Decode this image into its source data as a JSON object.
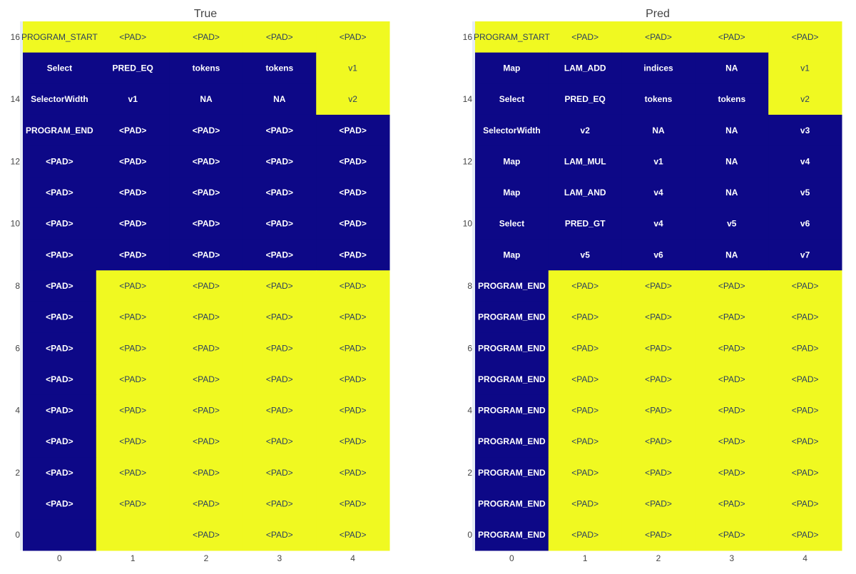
{
  "colors": {
    "low": "#0d0887",
    "high": "#f0f921",
    "text_on_low": "#ffffff",
    "text_on_high": "#2a3f5f",
    "title": "#444444",
    "tick": "#444444"
  },
  "chart_data": [
    {
      "type": "heatmap",
      "title": "True",
      "x_ticks": [
        "0",
        "1",
        "2",
        "3",
        "4"
      ],
      "y_ticks": [
        "16",
        "14",
        "12",
        "10",
        "8",
        "6",
        "4",
        "2",
        "0"
      ],
      "y_range": [
        0,
        16
      ],
      "rows": [
        {
          "y": 16,
          "labels": [
            "PROGRAM_START",
            "<PAD>",
            "<PAD>",
            "<PAD>",
            "<PAD>"
          ],
          "values": [
            1,
            1,
            1,
            1,
            1
          ]
        },
        {
          "y": 15,
          "labels": [
            "Select",
            "PRED_EQ",
            "tokens",
            "tokens",
            "v1"
          ],
          "values": [
            0,
            0,
            0,
            0,
            1
          ]
        },
        {
          "y": 14,
          "labels": [
            "SelectorWidth",
            "v1",
            "NA",
            "NA",
            "v2"
          ],
          "values": [
            0,
            0,
            0,
            0,
            1
          ]
        },
        {
          "y": 13,
          "labels": [
            "PROGRAM_END",
            "<PAD>",
            "<PAD>",
            "<PAD>",
            "<PAD>"
          ],
          "values": [
            0,
            0,
            0,
            0,
            0
          ]
        },
        {
          "y": 12,
          "labels": [
            "<PAD>",
            "<PAD>",
            "<PAD>",
            "<PAD>",
            "<PAD>"
          ],
          "values": [
            0,
            0,
            0,
            0,
            0
          ]
        },
        {
          "y": 11,
          "labels": [
            "<PAD>",
            "<PAD>",
            "<PAD>",
            "<PAD>",
            "<PAD>"
          ],
          "values": [
            0,
            0,
            0,
            0,
            0
          ]
        },
        {
          "y": 10,
          "labels": [
            "<PAD>",
            "<PAD>",
            "<PAD>",
            "<PAD>",
            "<PAD>"
          ],
          "values": [
            0,
            0,
            0,
            0,
            0
          ]
        },
        {
          "y": 9,
          "labels": [
            "<PAD>",
            "<PAD>",
            "<PAD>",
            "<PAD>",
            "<PAD>"
          ],
          "values": [
            0,
            0,
            0,
            0,
            0
          ]
        },
        {
          "y": 8,
          "labels": [
            "<PAD>",
            "<PAD>",
            "<PAD>",
            "<PAD>",
            "<PAD>"
          ],
          "values": [
            0,
            1,
            1,
            1,
            1
          ]
        },
        {
          "y": 7,
          "labels": [
            "<PAD>",
            "<PAD>",
            "<PAD>",
            "<PAD>",
            "<PAD>"
          ],
          "values": [
            0,
            1,
            1,
            1,
            1
          ]
        },
        {
          "y": 6,
          "labels": [
            "<PAD>",
            "<PAD>",
            "<PAD>",
            "<PAD>",
            "<PAD>"
          ],
          "values": [
            0,
            1,
            1,
            1,
            1
          ]
        },
        {
          "y": 5,
          "labels": [
            "<PAD>",
            "<PAD>",
            "<PAD>",
            "<PAD>",
            "<PAD>"
          ],
          "values": [
            0,
            1,
            1,
            1,
            1
          ]
        },
        {
          "y": 4,
          "labels": [
            "<PAD>",
            "<PAD>",
            "<PAD>",
            "<PAD>",
            "<PAD>"
          ],
          "values": [
            0,
            1,
            1,
            1,
            1
          ]
        },
        {
          "y": 3,
          "labels": [
            "<PAD>",
            "<PAD>",
            "<PAD>",
            "<PAD>",
            "<PAD>"
          ],
          "values": [
            0,
            1,
            1,
            1,
            1
          ]
        },
        {
          "y": 2,
          "labels": [
            "<PAD>",
            "<PAD>",
            "<PAD>",
            "<PAD>",
            "<PAD>"
          ],
          "values": [
            0,
            1,
            1,
            1,
            1
          ]
        },
        {
          "y": 1,
          "labels": [
            "<PAD>",
            "<PAD>",
            "<PAD>",
            "<PAD>",
            "<PAD>"
          ],
          "values": [
            0,
            1,
            1,
            1,
            1
          ]
        },
        {
          "y": 0,
          "labels": [
            "",
            "",
            "<PAD>",
            "<PAD>",
            "<PAD>"
          ],
          "values": [
            0,
            1,
            1,
            1,
            1
          ]
        }
      ]
    },
    {
      "type": "heatmap",
      "title": "Pred",
      "x_ticks": [
        "0",
        "1",
        "2",
        "3",
        "4"
      ],
      "y_ticks": [
        "16",
        "14",
        "12",
        "10",
        "8",
        "6",
        "4",
        "2",
        "0"
      ],
      "y_range": [
        0,
        16
      ],
      "rows": [
        {
          "y": 16,
          "labels": [
            "PROGRAM_START",
            "<PAD>",
            "<PAD>",
            "<PAD>",
            "<PAD>"
          ],
          "values": [
            1,
            1,
            1,
            1,
            1
          ]
        },
        {
          "y": 15,
          "labels": [
            "Map",
            "LAM_ADD",
            "indices",
            "NA",
            "v1"
          ],
          "values": [
            0,
            0,
            0,
            0,
            1
          ]
        },
        {
          "y": 14,
          "labels": [
            "Select",
            "PRED_EQ",
            "tokens",
            "tokens",
            "v2"
          ],
          "values": [
            0,
            0,
            0,
            0,
            1
          ]
        },
        {
          "y": 13,
          "labels": [
            "SelectorWidth",
            "v2",
            "NA",
            "NA",
            "v3"
          ],
          "values": [
            0,
            0,
            0,
            0,
            0
          ]
        },
        {
          "y": 12,
          "labels": [
            "Map",
            "LAM_MUL",
            "v1",
            "NA",
            "v4"
          ],
          "values": [
            0,
            0,
            0,
            0,
            0
          ]
        },
        {
          "y": 11,
          "labels": [
            "Map",
            "LAM_AND",
            "v4",
            "NA",
            "v5"
          ],
          "values": [
            0,
            0,
            0,
            0,
            0
          ]
        },
        {
          "y": 10,
          "labels": [
            "Select",
            "PRED_GT",
            "v4",
            "v5",
            "v6"
          ],
          "values": [
            0,
            0,
            0,
            0,
            0
          ]
        },
        {
          "y": 9,
          "labels": [
            "Map",
            "v5",
            "v6",
            "NA",
            "v7"
          ],
          "values": [
            0,
            0,
            0,
            0,
            0
          ]
        },
        {
          "y": 8,
          "labels": [
            "PROGRAM_END",
            "<PAD>",
            "<PAD>",
            "<PAD>",
            "<PAD>"
          ],
          "values": [
            0,
            1,
            1,
            1,
            1
          ]
        },
        {
          "y": 7,
          "labels": [
            "PROGRAM_END",
            "<PAD>",
            "<PAD>",
            "<PAD>",
            "<PAD>"
          ],
          "values": [
            0,
            1,
            1,
            1,
            1
          ]
        },
        {
          "y": 6,
          "labels": [
            "PROGRAM_END",
            "<PAD>",
            "<PAD>",
            "<PAD>",
            "<PAD>"
          ],
          "values": [
            0,
            1,
            1,
            1,
            1
          ]
        },
        {
          "y": 5,
          "labels": [
            "PROGRAM_END",
            "<PAD>",
            "<PAD>",
            "<PAD>",
            "<PAD>"
          ],
          "values": [
            0,
            1,
            1,
            1,
            1
          ]
        },
        {
          "y": 4,
          "labels": [
            "PROGRAM_END",
            "<PAD>",
            "<PAD>",
            "<PAD>",
            "<PAD>"
          ],
          "values": [
            0,
            1,
            1,
            1,
            1
          ]
        },
        {
          "y": 3,
          "labels": [
            "PROGRAM_END",
            "<PAD>",
            "<PAD>",
            "<PAD>",
            "<PAD>"
          ],
          "values": [
            0,
            1,
            1,
            1,
            1
          ]
        },
        {
          "y": 2,
          "labels": [
            "PROGRAM_END",
            "<PAD>",
            "<PAD>",
            "<PAD>",
            "<PAD>"
          ],
          "values": [
            0,
            1,
            1,
            1,
            1
          ]
        },
        {
          "y": 1,
          "labels": [
            "PROGRAM_END",
            "<PAD>",
            "<PAD>",
            "<PAD>",
            "<PAD>"
          ],
          "values": [
            0,
            1,
            1,
            1,
            1
          ]
        },
        {
          "y": 0,
          "labels": [
            "PROGRAM_END",
            "<PAD>",
            "<PAD>",
            "<PAD>",
            "<PAD>"
          ],
          "values": [
            0,
            1,
            1,
            1,
            1
          ]
        }
      ]
    }
  ]
}
